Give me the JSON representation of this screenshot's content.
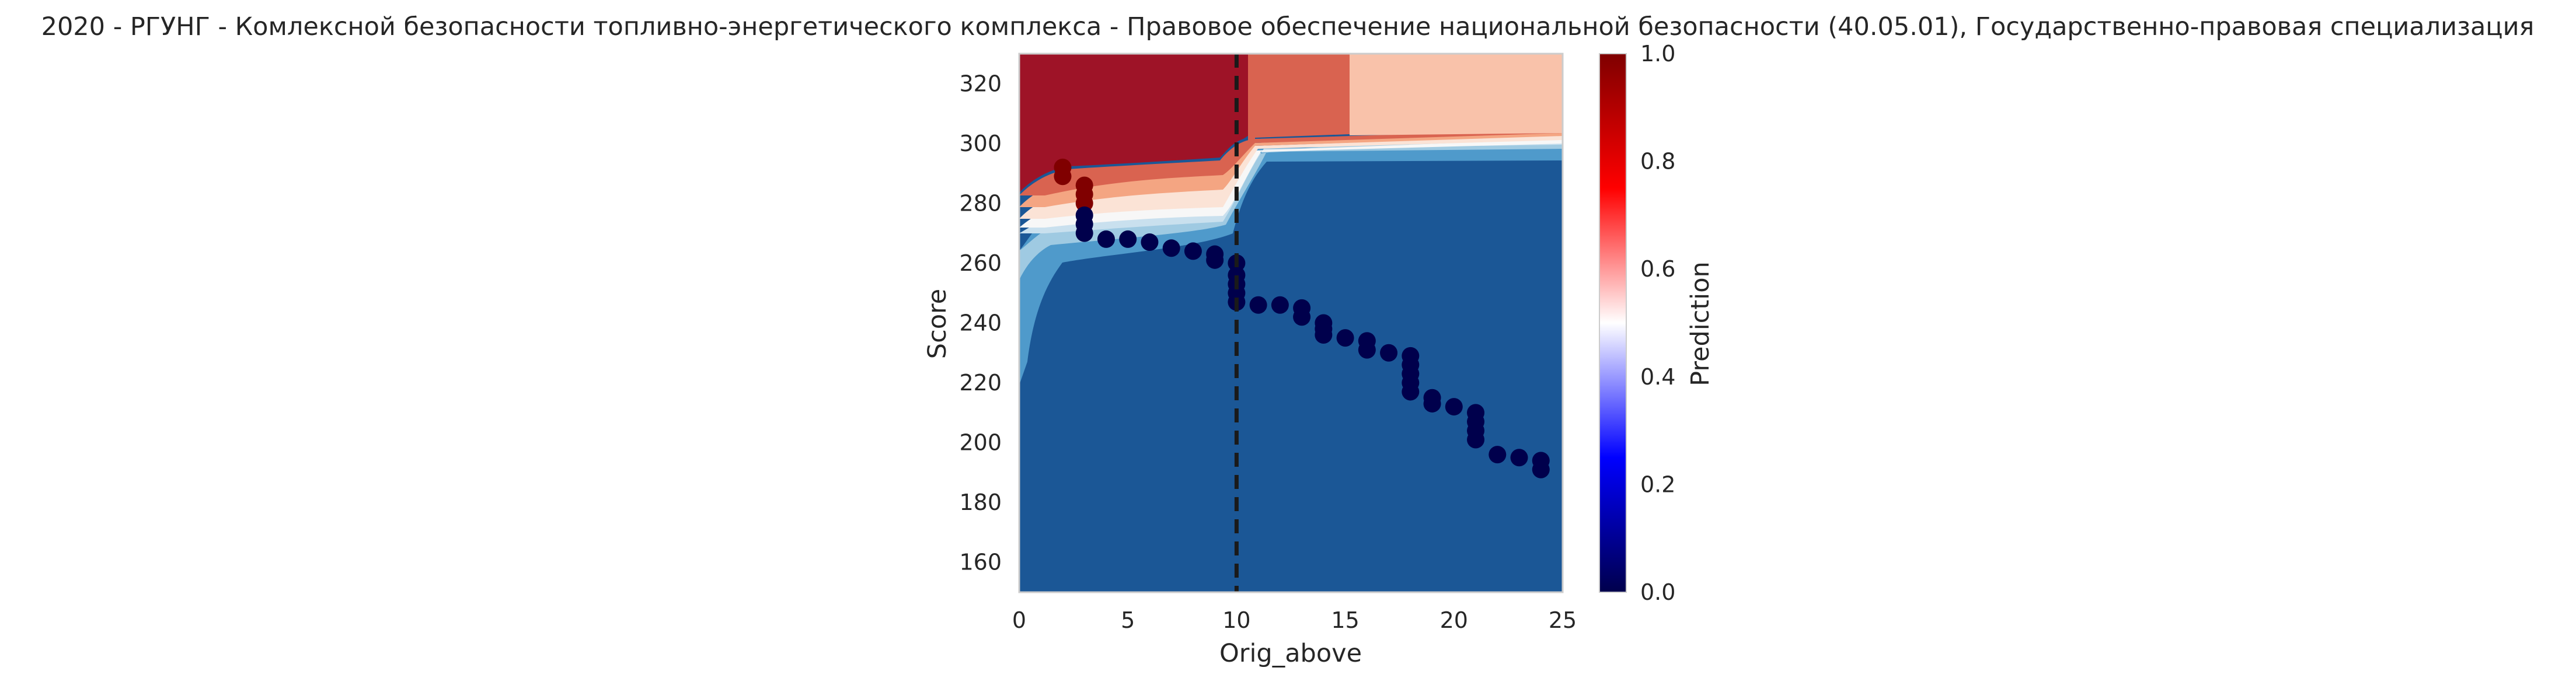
{
  "chart_data": {
    "type": "scatter",
    "title": "2020 - РГУНГ - Комлексной безопасности топливно-энергетического комплекса - Правовое обеспечение национальной безопасности (40.05.01), Государственно-правовая специализация",
    "xlabel": "Orig_above",
    "ylabel": "Score",
    "xlim": [
      0,
      25
    ],
    "ylim": [
      150,
      330
    ],
    "x_ticks": [
      0,
      5,
      10,
      15,
      20,
      25
    ],
    "y_ticks": [
      160,
      180,
      200,
      220,
      240,
      260,
      280,
      300,
      320
    ],
    "grid": false,
    "threshold_line": {
      "x": 10,
      "style": "dashed",
      "color": "#1a1a1a"
    },
    "colorbar": {
      "label": "Prediction",
      "colormap": "seismic",
      "range": [
        0,
        1
      ],
      "ticks": [
        "0.0",
        "0.2",
        "0.4",
        "0.6",
        "0.8",
        "1.0"
      ]
    },
    "background_surface": {
      "description_type": "filled-contour",
      "colors": {
        "dark_red": "#9e1327",
        "mid_red": "#d96350",
        "light_red": "#f9c2aa",
        "pale": "#fbe3d6",
        "white": "#f7f7f7",
        "pale_blue": "#c9e0ee",
        "light_blue": "#9fcae2",
        "mid_blue": "#4f9acb",
        "dark_blue": "#1b5796"
      }
    },
    "points": [
      {
        "x": 2,
        "y": 292,
        "p": 1
      },
      {
        "x": 2,
        "y": 289,
        "p": 1
      },
      {
        "x": 3,
        "y": 286,
        "p": 1
      },
      {
        "x": 3,
        "y": 283,
        "p": 1
      },
      {
        "x": 3,
        "y": 280,
        "p": 1
      },
      {
        "x": 3,
        "y": 276,
        "p": 0
      },
      {
        "x": 3,
        "y": 273,
        "p": 0
      },
      {
        "x": 3,
        "y": 270,
        "p": 0
      },
      {
        "x": 4,
        "y": 268,
        "p": 0
      },
      {
        "x": 5,
        "y": 268,
        "p": 0
      },
      {
        "x": 6,
        "y": 267,
        "p": 0
      },
      {
        "x": 7,
        "y": 265,
        "p": 0
      },
      {
        "x": 8,
        "y": 264,
        "p": 0
      },
      {
        "x": 9,
        "y": 263,
        "p": 0
      },
      {
        "x": 9,
        "y": 261,
        "p": 0
      },
      {
        "x": 10,
        "y": 260,
        "p": 0
      },
      {
        "x": 10,
        "y": 256,
        "p": 0
      },
      {
        "x": 10,
        "y": 253,
        "p": 0
      },
      {
        "x": 10,
        "y": 250,
        "p": 0
      },
      {
        "x": 10,
        "y": 247,
        "p": 0
      },
      {
        "x": 11,
        "y": 246,
        "p": 0
      },
      {
        "x": 12,
        "y": 246,
        "p": 0
      },
      {
        "x": 13,
        "y": 245,
        "p": 0
      },
      {
        "x": 13,
        "y": 242,
        "p": 0
      },
      {
        "x": 14,
        "y": 240,
        "p": 0
      },
      {
        "x": 14,
        "y": 238,
        "p": 0
      },
      {
        "x": 14,
        "y": 236,
        "p": 0
      },
      {
        "x": 15,
        "y": 235,
        "p": 0
      },
      {
        "x": 16,
        "y": 234,
        "p": 0
      },
      {
        "x": 16,
        "y": 231,
        "p": 0
      },
      {
        "x": 17,
        "y": 230,
        "p": 0
      },
      {
        "x": 18,
        "y": 229,
        "p": 0
      },
      {
        "x": 18,
        "y": 226,
        "p": 0
      },
      {
        "x": 18,
        "y": 223,
        "p": 0
      },
      {
        "x": 18,
        "y": 220,
        "p": 0
      },
      {
        "x": 18,
        "y": 217,
        "p": 0
      },
      {
        "x": 19,
        "y": 215,
        "p": 0
      },
      {
        "x": 19,
        "y": 213,
        "p": 0
      },
      {
        "x": 20,
        "y": 212,
        "p": 0
      },
      {
        "x": 21,
        "y": 210,
        "p": 0
      },
      {
        "x": 21,
        "y": 207,
        "p": 0
      },
      {
        "x": 21,
        "y": 204,
        "p": 0
      },
      {
        "x": 21,
        "y": 201,
        "p": 0
      },
      {
        "x": 22,
        "y": 196,
        "p": 0
      },
      {
        "x": 23,
        "y": 195,
        "p": 0
      },
      {
        "x": 24,
        "y": 194,
        "p": 0
      },
      {
        "x": 24,
        "y": 191,
        "p": 0
      }
    ]
  }
}
